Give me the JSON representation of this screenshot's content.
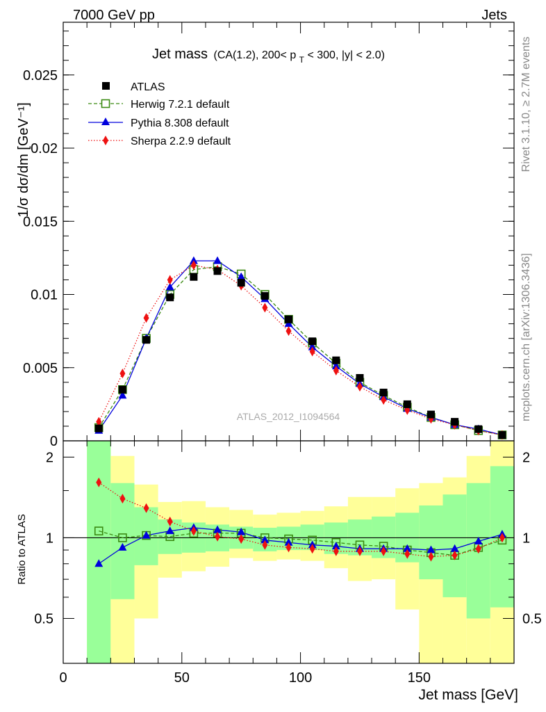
{
  "header": {
    "left": "7000 GeV pp",
    "right": "Jets"
  },
  "side_labels": {
    "rivet": "Rivet 3.1.10, ≥ 2.7M events",
    "mcplots": "mcplots.cern.ch [arXiv:1306.3436]"
  },
  "watermark": "ATLAS_2012_I1094564",
  "colors": {
    "atlas": "#000000",
    "herwig": "#3a8a12",
    "pythia": "#0000dd",
    "sherpa": "#ee1111",
    "band_inner": "#99ff99",
    "band_outer": "#ffff99"
  },
  "chart_data": [
    {
      "type": "line",
      "panel": "main",
      "title_main": "Jet mass",
      "title_detail": "(CA(1.2), 200< p",
      "title_sub": "T",
      "title_tail": " < 300, |y| < 2.0)",
      "ylabel": "1/σ dσ/dm [GeV⁻¹]",
      "xlim": [
        0,
        190
      ],
      "ylim": [
        0,
        0.0286
      ],
      "yticks": [
        0,
        0.005,
        0.01,
        0.015,
        0.02,
        0.025
      ],
      "ytick_labels": [
        "0",
        "0.005",
        "0.01",
        "0.015",
        "0.02",
        "0.025"
      ],
      "legend_position": "top-left",
      "x": [
        15,
        25,
        35,
        45,
        55,
        65,
        75,
        85,
        95,
        105,
        115,
        125,
        135,
        145,
        155,
        165,
        175,
        185
      ],
      "series": [
        {
          "name": "ATLAS",
          "style": "square-filled",
          "values": [
            0.00085,
            0.0035,
            0.0069,
            0.0098,
            0.0112,
            0.0116,
            0.0108,
            0.0099,
            0.0083,
            0.0068,
            0.0055,
            0.0043,
            0.0033,
            0.0025,
            0.0018,
            0.0013,
            0.0008,
            0.0004
          ]
        },
        {
          "name": "Herwig 7.2.1 default",
          "style": "square-open-dashed",
          "values": [
            0.0009,
            0.0035,
            0.007,
            0.01,
            0.0117,
            0.0119,
            0.0114,
            0.01,
            0.0083,
            0.0067,
            0.0053,
            0.004,
            0.0031,
            0.0023,
            0.0016,
            0.0011,
            0.0007,
            0.0004
          ]
        },
        {
          "name": "Pythia 8.308 default",
          "style": "triangle-solid",
          "values": [
            0.0007,
            0.0031,
            0.007,
            0.0105,
            0.0123,
            0.0123,
            0.0112,
            0.0097,
            0.008,
            0.0064,
            0.0051,
            0.0039,
            0.003,
            0.0022,
            0.0016,
            0.0011,
            0.0008,
            0.0004
          ]
        },
        {
          "name": "Sherpa 2.2.9 default",
          "style": "diamond-dotted",
          "values": [
            0.0013,
            0.0046,
            0.0084,
            0.011,
            0.012,
            0.0117,
            0.0106,
            0.0091,
            0.0075,
            0.0061,
            0.0048,
            0.0037,
            0.0028,
            0.0021,
            0.0015,
            0.0011,
            0.0007,
            0.0004
          ]
        }
      ]
    },
    {
      "type": "line",
      "panel": "ratio",
      "xlabel": "Jet mass [GeV]",
      "ylabel": "Ratio to ATLAS",
      "xlim": [
        0,
        190
      ],
      "ylim": [
        0.34,
        2.3
      ],
      "xticks": [
        0,
        50,
        100,
        150
      ],
      "xtick_labels": [
        "0",
        "50",
        "100",
        "150"
      ],
      "yticks": [
        0.5,
        1,
        2
      ],
      "ytick_labels": [
        "0.5",
        "1",
        "2"
      ],
      "bin_edges": [
        10,
        20,
        30,
        40,
        50,
        60,
        70,
        80,
        90,
        100,
        110,
        120,
        130,
        140,
        150,
        160,
        170,
        180,
        190
      ],
      "band_inner": {
        "low": [
          0.34,
          0.59,
          0.79,
          0.87,
          0.88,
          0.89,
          0.91,
          0.89,
          0.9,
          0.9,
          0.87,
          0.86,
          0.84,
          0.81,
          0.7,
          0.6,
          0.5,
          0.55
        ],
        "high": [
          2.3,
          1.6,
          1.3,
          1.17,
          1.14,
          1.12,
          1.1,
          1.09,
          1.1,
          1.12,
          1.14,
          1.17,
          1.2,
          1.24,
          1.32,
          1.45,
          1.6,
          1.85
        ]
      },
      "band_outer": {
        "low": [
          0.34,
          0.34,
          0.5,
          0.71,
          0.75,
          0.78,
          0.84,
          0.82,
          0.83,
          0.82,
          0.77,
          0.69,
          0.7,
          0.54,
          0.34,
          0.34,
          0.34,
          0.34
        ],
        "high": [
          2.3,
          2.02,
          1.58,
          1.36,
          1.37,
          1.3,
          1.27,
          1.22,
          1.24,
          1.26,
          1.31,
          1.42,
          1.42,
          1.53,
          1.6,
          1.68,
          2.02,
          2.3
        ]
      },
      "x": [
        15,
        25,
        35,
        45,
        55,
        65,
        75,
        85,
        95,
        105,
        115,
        125,
        135,
        145,
        155,
        165,
        175,
        185
      ],
      "series": [
        {
          "name": "Herwig 7.2.1 default",
          "values": [
            1.06,
            1.0,
            1.02,
            1.01,
            1.04,
            1.04,
            1.04,
            1.0,
            0.99,
            0.98,
            0.96,
            0.94,
            0.93,
            0.9,
            0.88,
            0.86,
            0.92,
            0.98
          ]
        },
        {
          "name": "Pythia 8.308 default",
          "values": [
            0.8,
            0.92,
            1.02,
            1.06,
            1.09,
            1.07,
            1.05,
            0.98,
            0.96,
            0.94,
            0.93,
            0.91,
            0.91,
            0.91,
            0.9,
            0.91,
            0.97,
            1.03
          ]
        },
        {
          "name": "Sherpa 2.2.9 default",
          "values": [
            1.61,
            1.4,
            1.29,
            1.15,
            1.06,
            1.01,
            0.99,
            0.94,
            0.92,
            0.91,
            0.89,
            0.89,
            0.89,
            0.87,
            0.85,
            0.86,
            0.91,
            1.0
          ]
        }
      ]
    }
  ]
}
